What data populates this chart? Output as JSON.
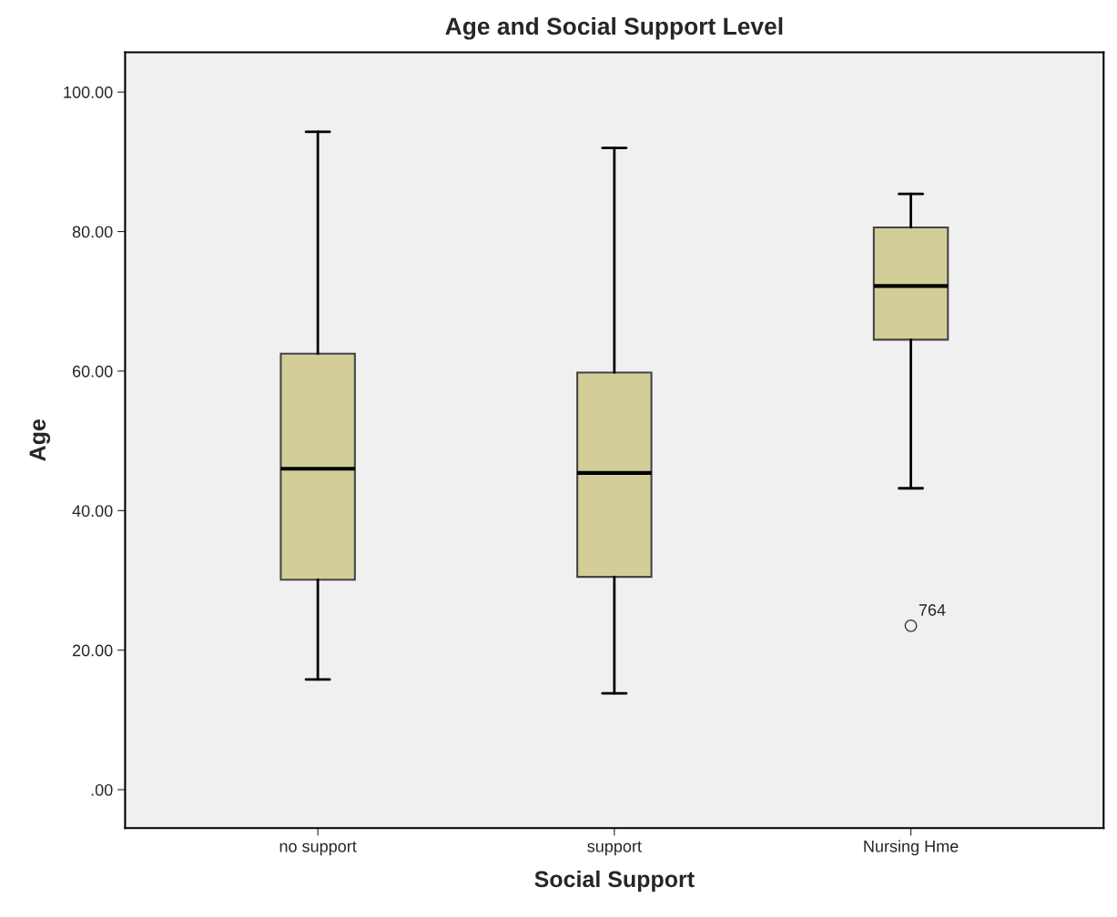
{
  "chart_data": {
    "type": "box",
    "title": "Age and Social Support Level",
    "xlabel": "Social Support",
    "ylabel": "Age",
    "categories": [
      "no support",
      "support",
      "Nursing Hme"
    ],
    "boxes": [
      {
        "low": 15.8,
        "q1": 30.1,
        "median": 46.0,
        "q3": 62.5,
        "high": 94.3
      },
      {
        "low": 13.8,
        "q1": 30.5,
        "median": 45.4,
        "q3": 59.8,
        "high": 92.0
      },
      {
        "low": 43.2,
        "q1": 64.5,
        "median": 72.2,
        "q3": 80.6,
        "high": 85.4,
        "outliers": [
          23.5
        ]
      }
    ],
    "color": "#d3ce97",
    "annotations": [
      "764"
    ],
    "ylim": [
      -5.5,
      105.7
    ],
    "yticks": [
      {
        "value": 0,
        "label": ".00"
      },
      {
        "value": 20,
        "label": "20.00"
      },
      {
        "value": 40,
        "label": "40.00"
      },
      {
        "value": 60,
        "label": "60.00"
      },
      {
        "value": 80,
        "label": "80.00"
      },
      {
        "value": 100,
        "label": "100.00"
      }
    ],
    "grid": false,
    "legend": false
  }
}
